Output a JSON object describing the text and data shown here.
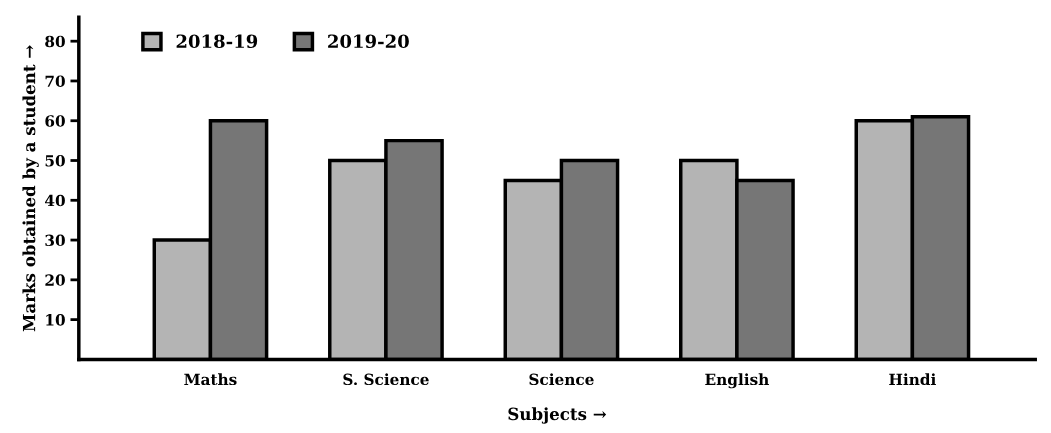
{
  "chart_data": {
    "type": "bar",
    "xlabel": "Subjects →",
    "ylabel": "Marks obtained by a student →",
    "categories": [
      "Maths",
      "S. Science",
      "Science",
      "English",
      "Hindi"
    ],
    "series": [
      {
        "name": "2018-19",
        "color": "#b4b4b4",
        "values": [
          30,
          50,
          45,
          50,
          60
        ]
      },
      {
        "name": "2019-20",
        "color": "#767676",
        "values": [
          60,
          55,
          50,
          45,
          61
        ]
      }
    ],
    "ylim": [
      0,
      86
    ],
    "yticks": [
      10,
      20,
      30,
      40,
      50,
      60,
      70,
      80
    ],
    "grid": false,
    "legend": "top left"
  }
}
